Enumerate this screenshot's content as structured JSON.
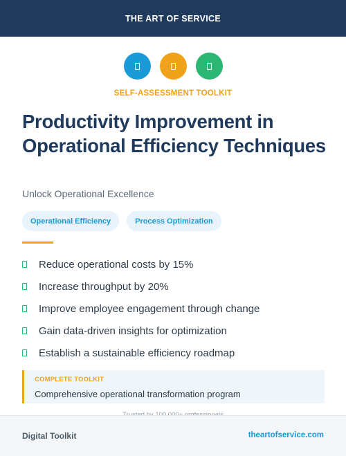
{
  "header": {
    "brand": "THE ART OF SERVICE"
  },
  "icons": [
    {
      "name": "document-icon",
      "color": "#1a9bd7"
    },
    {
      "name": "document-icon",
      "color": "#f0a21b"
    },
    {
      "name": "document-icon",
      "color": "#2bb673"
    }
  ],
  "eyebrow": "SELF-ASSESSMENT TOOLKIT",
  "title": "Productivity Improvement in Operational Efficiency Techniques",
  "subtitle": "Unlock Operational Excellence",
  "tags": [
    "Operational Efficiency",
    "Process Optimization"
  ],
  "benefits": [
    "Reduce operational costs by 15%",
    "Increase throughput by 20%",
    "Improve employee engagement through change",
    "Gain data-driven insights for optimization",
    "Establish a sustainable efficiency roadmap"
  ],
  "toolkit_box": {
    "label": "COMPLETE TOOLKIT",
    "description": "Comprehensive operational transformation program"
  },
  "trusted": "Trusted by 100,000+ professionals",
  "footer": {
    "left": "Digital Toolkit",
    "right": "theartofservice.com"
  }
}
